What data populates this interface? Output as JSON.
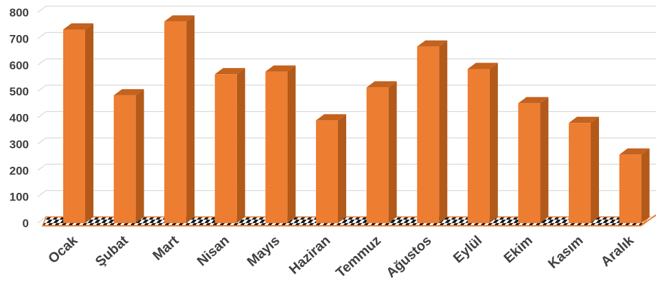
{
  "chart_data": {
    "type": "bar",
    "style": "3d-column",
    "categories": [
      "Ocak",
      "Şubat",
      "Mart",
      "Nisan",
      "Mayıs",
      "Haziran",
      "Temmuz",
      "Ağustos",
      "Eylül",
      "Ekim",
      "Kasım",
      "Aralık"
    ],
    "values": [
      735,
      485,
      765,
      565,
      575,
      390,
      515,
      670,
      585,
      455,
      380,
      260
    ],
    "yticks": [
      0,
      100,
      200,
      300,
      400,
      500,
      600,
      700,
      800
    ],
    "ylim": [
      0,
      800
    ],
    "grid": true,
    "legend": "none",
    "colors": {
      "bar_front": "#ED7D31",
      "bar_side": "#B35A1A",
      "bar_top": "#C4621F",
      "floor_edge": "#ED7D31",
      "grid": "#D9D9D9"
    }
  }
}
